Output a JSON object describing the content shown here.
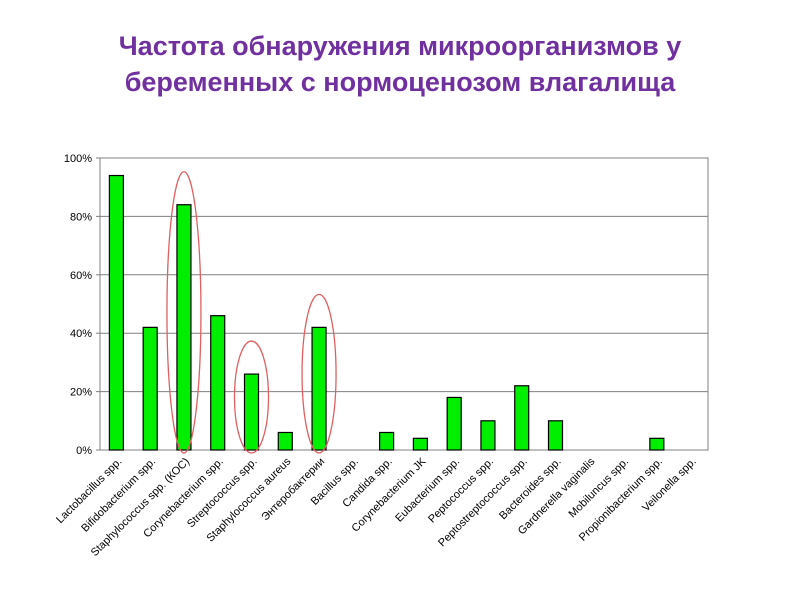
{
  "title": {
    "line1": "Частота обнаружения микроорганизмов у",
    "line2": "беременных с нормоценозом влагалища"
  },
  "chart_data": {
    "type": "bar",
    "categories": [
      "Lactobacillus spp.",
      "Bifidobacterium spp.",
      "Staphylococcus spp. (КОС)",
      "Corynebacterium spp.",
      "Streptococcus spp.",
      "Staphylococcus aureus",
      "Энтеробактерии",
      "Bacillus spp.",
      "Candida spp.",
      "Corynebacterium JK",
      "Eubacterium spp.",
      "Peptococcus spp.",
      "Peptostreptococcus spp.",
      "Bacteroides spp.",
      "Gardnerella vaginalis",
      "Mobiluncus spp.",
      "Propionibacterium spp.",
      "Veilonella spp."
    ],
    "values": [
      94,
      42,
      84,
      46,
      26,
      6,
      42,
      0,
      6,
      4,
      18,
      10,
      22,
      10,
      0,
      0,
      4,
      0
    ],
    "yticks": [
      "0%",
      "20%",
      "40%",
      "60%",
      "80%",
      "100%"
    ],
    "ylim": [
      0,
      100
    ],
    "grid": true,
    "bar_color": "#00ee00",
    "highlighted": [
      "Staphylococcus spp. (КОС)",
      "Streptococcus spp.",
      "Энтеробактерии"
    ],
    "highlight_color": "#e06060"
  }
}
